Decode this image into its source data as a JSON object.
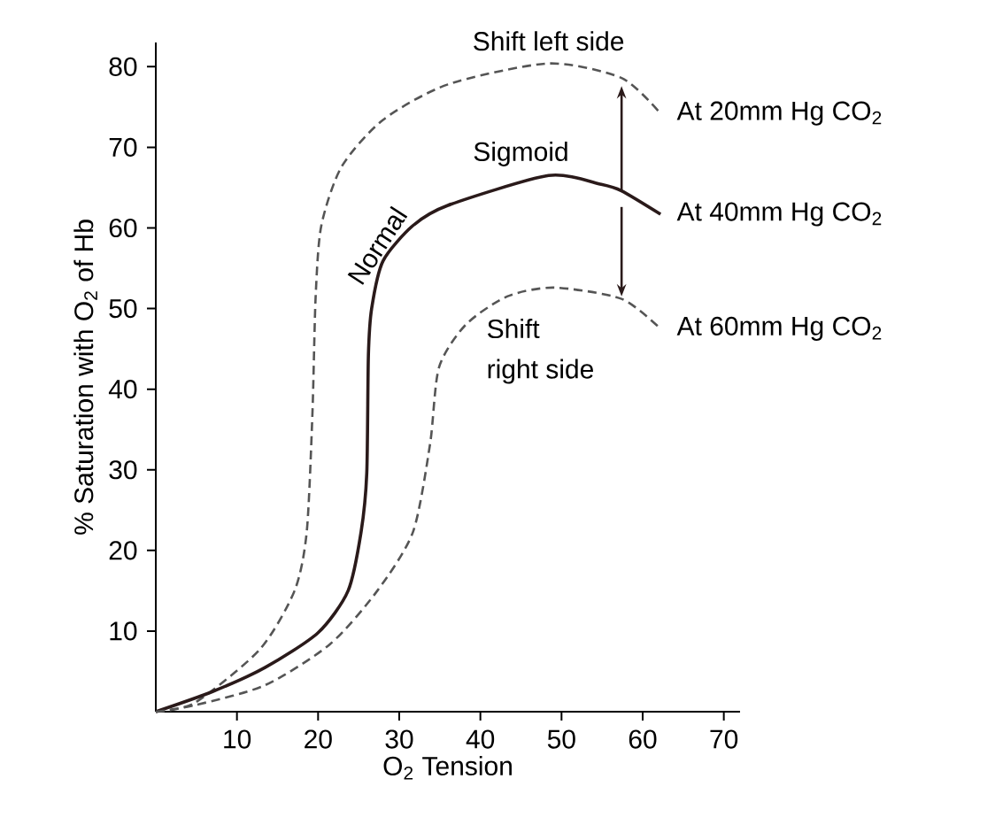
{
  "chart_data": {
    "type": "line",
    "xlabel": "O$_{2}$ Tension",
    "ylabel": "% Saturation with O$_{2}$ of Hb",
    "xlim": [
      0,
      72
    ],
    "ylim": [
      0,
      83
    ],
    "xticks": [
      10,
      20,
      30,
      40,
      50,
      60,
      70
    ],
    "yticks": [
      10,
      20,
      30,
      40,
      50,
      60,
      70,
      80
    ],
    "marker": "none",
    "series": [
      {
        "name": "At 20mm Hg CO$_{2}$",
        "color": "#555555",
        "line_style": "dashed",
        "x": [
          0,
          4.8,
          12.8,
          17.1,
          18.6,
          19.3,
          19.7,
          20.4,
          22.9,
          28,
          36,
          48.4,
          57.4,
          62.2
        ],
        "values": [
          0,
          1.1,
          7.7,
          15,
          22.3,
          36.9,
          51.5,
          60.3,
          67.6,
          73.4,
          77.8,
          80.4,
          78.6,
          74.2
        ]
      },
      {
        "name": "At 40mm Hg CO$_{2}$",
        "color": "#2a1a1a",
        "line_style": "solid",
        "x": [
          0,
          7,
          13.5,
          20,
          23.7,
          25.3,
          26,
          26.2,
          26.6,
          28,
          31.7,
          36,
          48.4,
          54.9,
          57.4,
          62.2
        ],
        "values": [
          0,
          2.5,
          5.5,
          9.8,
          15,
          22.3,
          29.6,
          44.2,
          50,
          55.9,
          60.3,
          62.8,
          66.5,
          65.4,
          64.6,
          61.7
        ]
      },
      {
        "name": "At 60mm Hg CO$_{2}$",
        "color": "#555555",
        "line_style": "dashed",
        "x": [
          0,
          4.8,
          13.5,
          21.5,
          27.3,
          31.7,
          33.8,
          34.9,
          38.2,
          43.3,
          49.1,
          57.4,
          62.2
        ],
        "values": [
          0,
          0.8,
          3.3,
          8.4,
          15,
          22.3,
          33.2,
          42.7,
          48,
          51.5,
          52.6,
          51.2,
          47.5
        ]
      }
    ],
    "annotations": [
      {
        "text": "Shift left side",
        "x": 48.4,
        "y": 80.4
      },
      {
        "text": "Sigmoid",
        "x": 45,
        "y": 66.5
      },
      {
        "text": "Normal",
        "x": 28.5,
        "y": 57
      },
      "Shift",
      "right side"
    ]
  }
}
